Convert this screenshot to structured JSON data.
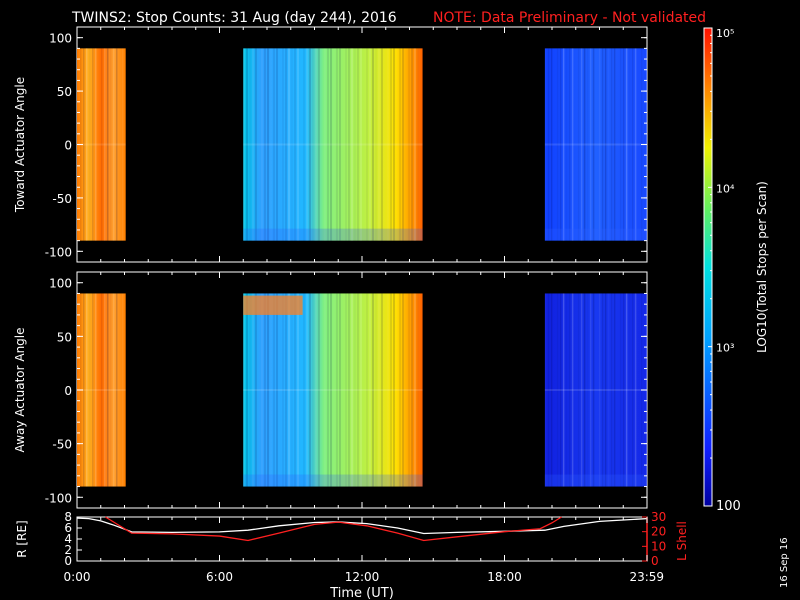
{
  "title": "TWINS2: Stop Counts: 31 Aug (day 244), 2016",
  "note": "NOTE: Data Preliminary - Not validated",
  "date_stamp": "16 Sep 16",
  "chart_data": [
    {
      "type": "heatmap",
      "panel": "toward",
      "ylabel": "Toward Actuator Angle",
      "ylim": [
        -110,
        110
      ],
      "yticks": [
        "100",
        "50",
        "0",
        "-50",
        "-100"
      ],
      "ytick_values": [
        100,
        50,
        0,
        -50,
        -100
      ],
      "xlim": [
        0,
        24
      ],
      "data_y_range": [
        -90,
        90
      ],
      "segments": [
        {
          "start_hour": 0.0,
          "end_hour": 2.05,
          "level": "high",
          "log10_counts": 4.7
        },
        {
          "start_hour": 7.0,
          "end_hour": 14.55,
          "level": "mid",
          "log10_counts": 3.7
        },
        {
          "start_hour": 19.7,
          "end_hour": 23.99,
          "level": "low",
          "log10_counts": 2.8
        }
      ]
    },
    {
      "type": "heatmap",
      "panel": "away",
      "ylabel": "Away Actuator Angle",
      "ylim": [
        -110,
        110
      ],
      "yticks": [
        "100",
        "50",
        "0",
        "-50",
        "-100"
      ],
      "ytick_values": [
        100,
        50,
        0,
        -50,
        -100
      ],
      "xlim": [
        0,
        24
      ],
      "data_y_range": [
        -90,
        90
      ],
      "segments": [
        {
          "start_hour": 0.0,
          "end_hour": 2.05,
          "level": "high",
          "log10_counts": 4.7
        },
        {
          "start_hour": 7.0,
          "end_hour": 14.55,
          "level": "mid",
          "log10_counts": 3.6
        },
        {
          "start_hour": 19.7,
          "end_hour": 23.99,
          "level": "low",
          "log10_counts": 2.6
        }
      ]
    },
    {
      "type": "line",
      "panel": "orbit",
      "xlabel": "Time (UT)",
      "xticks": [
        "0:00",
        "6:00",
        "12:00",
        "18:00",
        "23:59"
      ],
      "xtick_values": [
        0,
        6,
        12,
        18,
        23.99
      ],
      "ylabel_left": "R [RE]",
      "ylim_left": [
        0,
        8
      ],
      "yticks_left": [
        "8",
        "6",
        "4",
        "2",
        "0"
      ],
      "ytick_values_left": [
        8,
        6,
        4,
        2,
        0
      ],
      "ylabel_right": "L Shell",
      "ylim_right": [
        0,
        30
      ],
      "yticks_right": [
        "30",
        "20",
        "10",
        "0"
      ],
      "ytick_values_right": [
        30,
        20,
        10,
        0
      ],
      "series": [
        {
          "axis": "left",
          "color": "#ffffff",
          "x": [
            0,
            0.5,
            1.0,
            1.5,
            2.3,
            4,
            6,
            7.2,
            8.5,
            10,
            11,
            12.2,
            13.5,
            14.6,
            16,
            18,
            19.7,
            20.5,
            22,
            23.99
          ],
          "y": [
            7.8,
            7.7,
            7.3,
            6.6,
            5.3,
            5.2,
            5.3,
            5.6,
            6.4,
            7.0,
            7.1,
            6.8,
            6.0,
            5.0,
            5.2,
            5.4,
            5.6,
            6.3,
            7.2,
            7.7
          ]
        },
        {
          "axis": "right",
          "color": "#ff2020",
          "x": [
            1.2,
            1.6,
            2.3,
            4,
            6,
            7.2,
            8.5,
            10,
            11,
            12.2,
            13.5,
            14.6,
            16,
            18,
            19.5,
            20.0,
            20.4
          ],
          "y": [
            31,
            26,
            19,
            18.5,
            17,
            14,
            19,
            25,
            26.5,
            24,
            19,
            14,
            16.5,
            20,
            22,
            26,
            31
          ]
        }
      ]
    },
    {
      "type": "colorbar",
      "label": "LOG10(Total Stops per Scan)",
      "scale": "log",
      "range": [
        100,
        100000
      ],
      "tick_labels": [
        "100",
        "10³",
        "10⁴",
        "10⁵"
      ],
      "tick_values": [
        100,
        1000,
        10000,
        100000
      ]
    }
  ]
}
